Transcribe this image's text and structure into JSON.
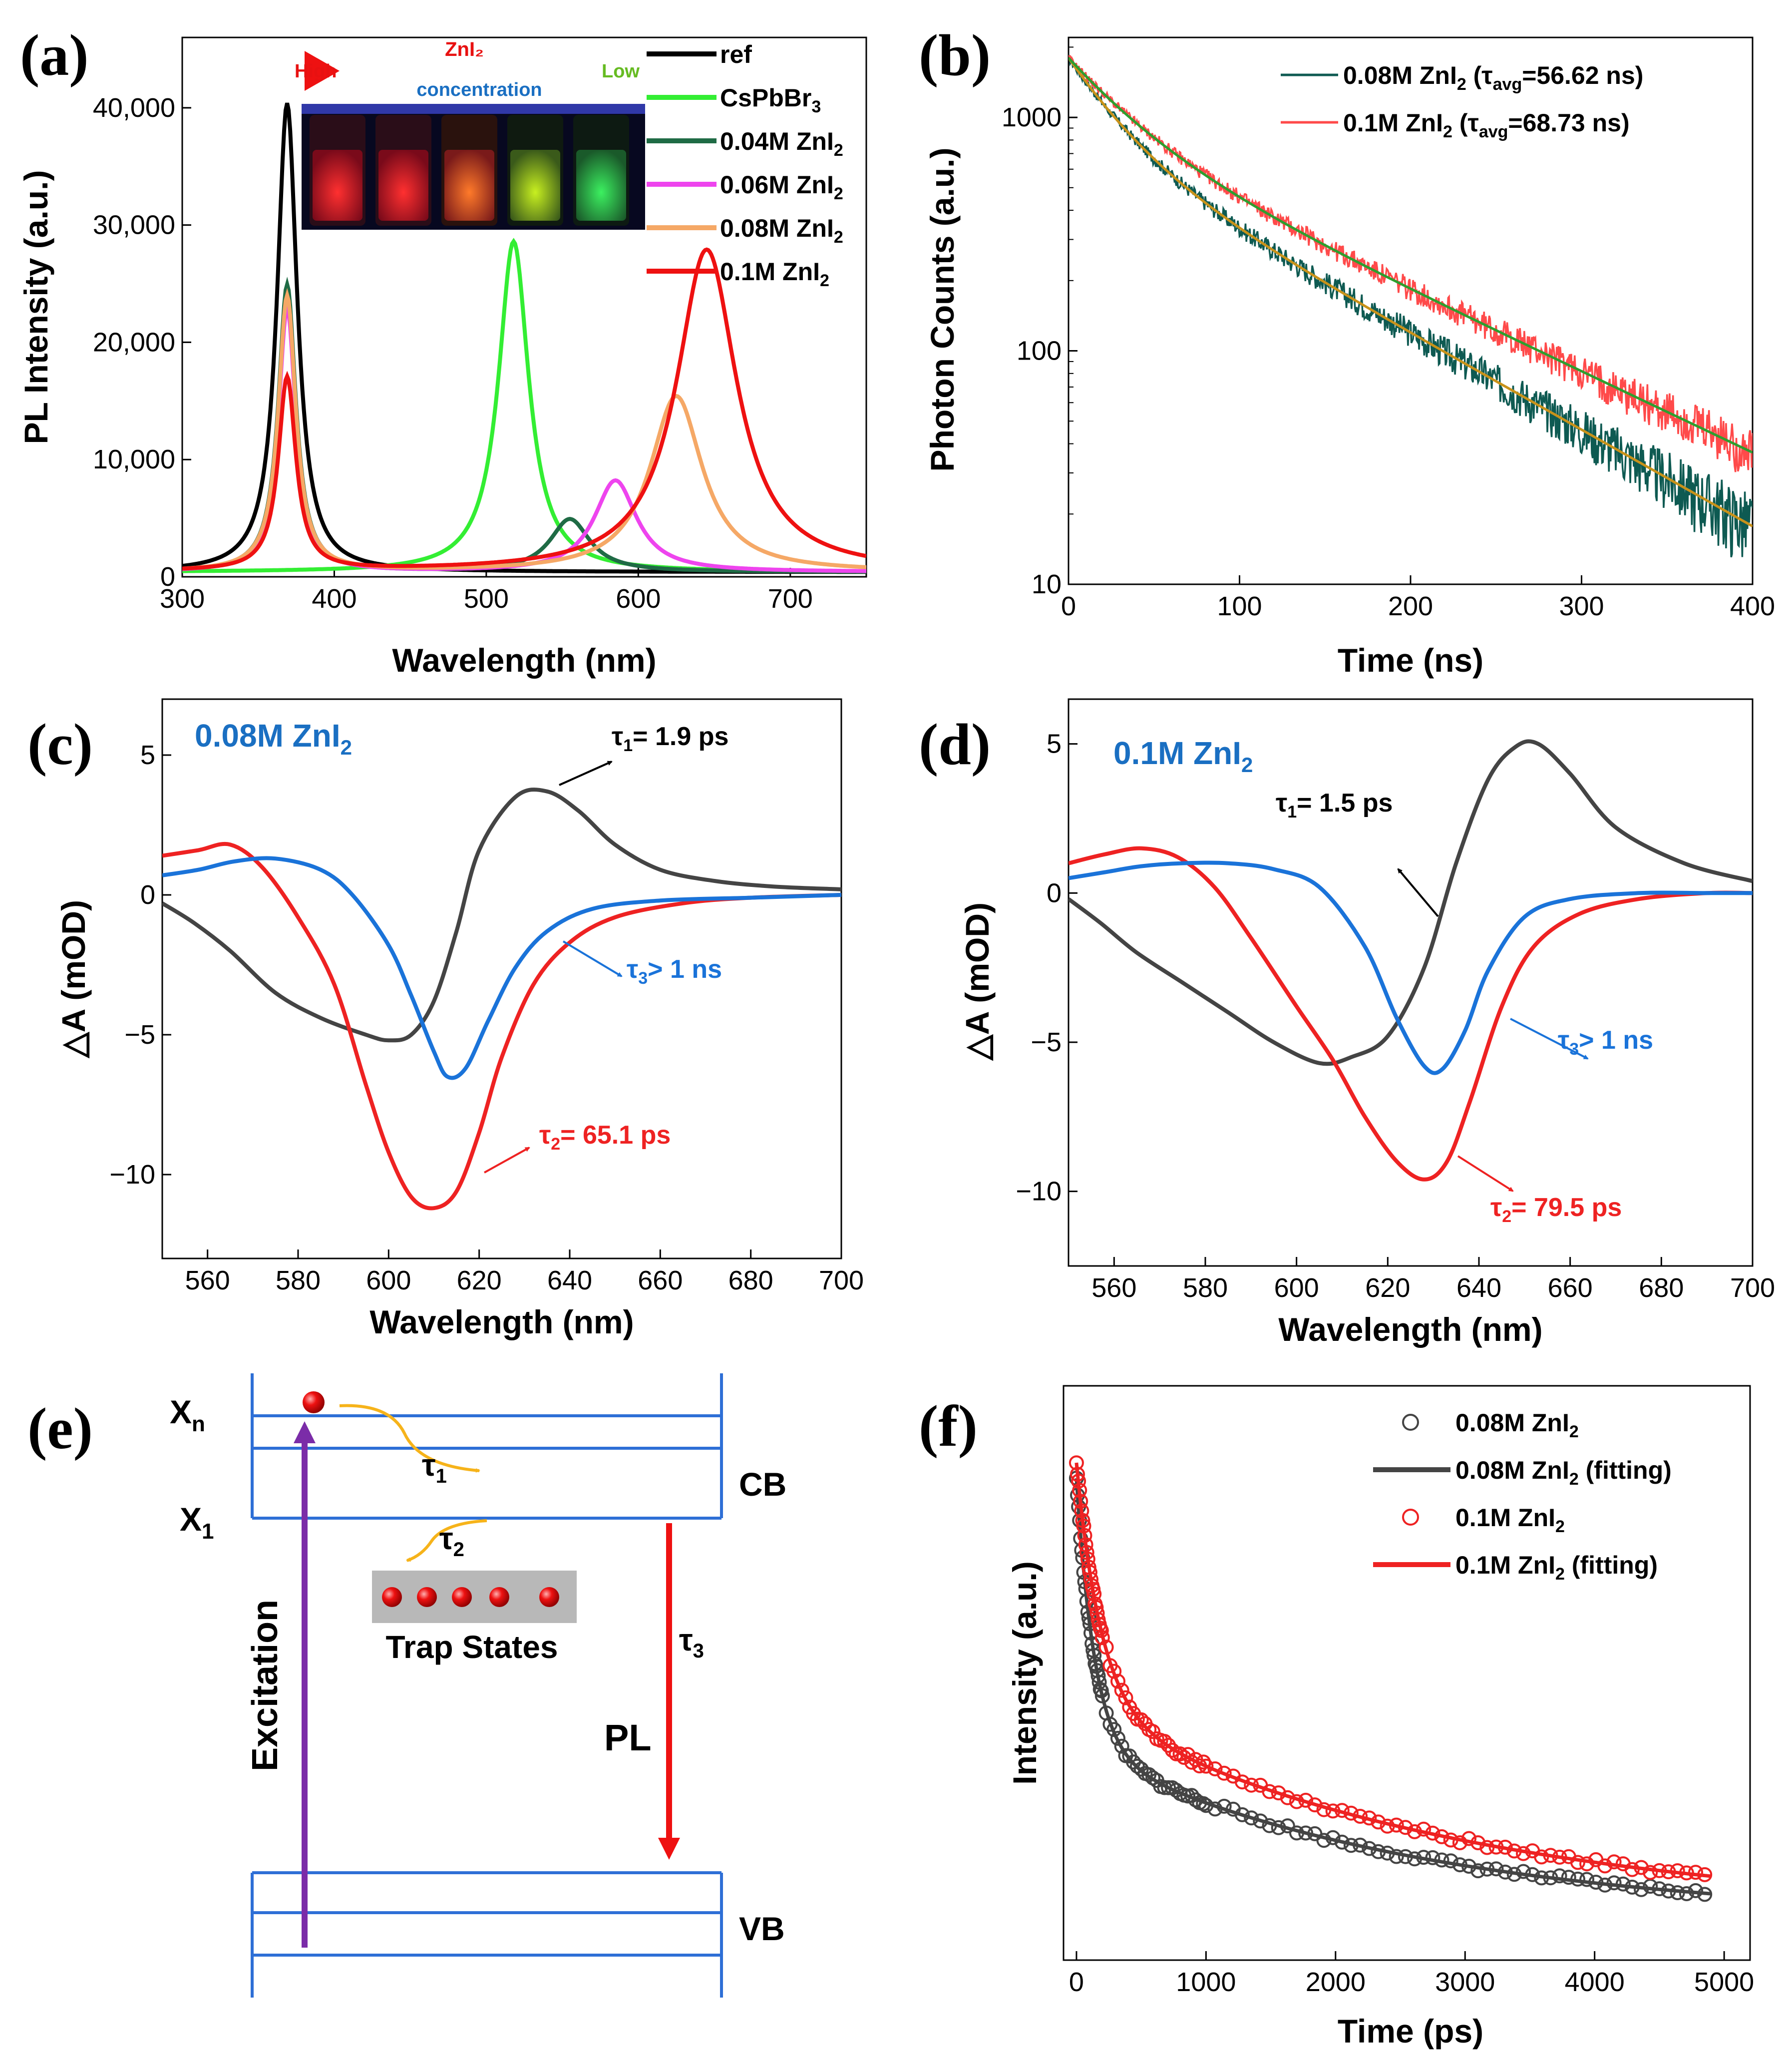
{
  "colors": {
    "ref": "#000000",
    "cspbbr3": "#33ee33",
    "zn004": "#1f6b45",
    "zn006": "#ee44ee",
    "zn008": "#f5a866",
    "zn01": "#ee1111",
    "b008": "#0e5a52",
    "b01": "#ff4a4a",
    "fitGreen": "#2e9e2e",
    "fitGold": "#c8921a",
    "gray": "#444444",
    "blue": "#1a73d9",
    "red": "#ee2222",
    "purple": "#7b2ca8",
    "amber": "#f6b31a",
    "cbblue": "#2e6fd6",
    "textBlue": "#1a6fc2"
  },
  "panels": {
    "a": "(a)",
    "b": "(b)",
    "c": "(c)",
    "d": "(d)",
    "e": "(e)",
    "f": "(f)"
  },
  "inset": {
    "zni2": "ZnI₂",
    "high": "High",
    "low": "Low",
    "concentration": "concentration"
  },
  "chart_data": [
    {
      "id": "a",
      "type": "line",
      "xlabel": "Wavelength (nm)",
      "ylabel": "PL Intensity (a.u.)",
      "xlim": [
        300,
        750
      ],
      "ylim": [
        0,
        46000
      ],
      "xticks": [
        300,
        400,
        500,
        600,
        700
      ],
      "xtick_labels": [
        "300",
        "400",
        "500",
        "600",
        "700"
      ],
      "yticks": [
        0,
        10000,
        20000,
        30000,
        40000
      ],
      "ytick_labels": [
        "0",
        "10,000",
        "20,000",
        "30,000",
        "40,000"
      ],
      "series": [
        {
          "name": "ref",
          "legend": "ref",
          "sub": "",
          "color_key": "ref",
          "peaks": [
            {
              "center": 369,
              "amp": 40000,
              "width": 8
            }
          ]
        },
        {
          "name": "CsPbBr3",
          "legend": "CsPbBr",
          "sub": "3",
          "color_key": "cspbbr3",
          "peaks": [
            {
              "center": 518,
              "amp": 28200,
              "width": 12
            }
          ]
        },
        {
          "name": "0.04M ZnI2",
          "legend": "0.04M ZnI",
          "sub": "2",
          "color_key": "zn004",
          "peaks": [
            {
              "center": 369,
              "amp": 24500,
              "width": 7
            },
            {
              "center": 555,
              "amp": 4500,
              "width": 16
            }
          ]
        },
        {
          "name": "0.06M ZnI2",
          "legend": "0.06M ZnI",
          "sub": "2",
          "color_key": "zn006",
          "peaks": [
            {
              "center": 369,
              "amp": 22500,
              "width": 7
            },
            {
              "center": 585,
              "amp": 7800,
              "width": 17
            }
          ]
        },
        {
          "name": "0.08M ZnI2",
          "legend": "0.08M ZnI",
          "sub": "2",
          "color_key": "zn008",
          "peaks": [
            {
              "center": 369,
              "amp": 23500,
              "width": 7
            },
            {
              "center": 625,
              "amp": 15000,
              "width": 21
            }
          ]
        },
        {
          "name": "0.1M ZnI2",
          "legend": "0.1M  ZnI",
          "sub": "2",
          "color_key": "zn01",
          "peaks": [
            {
              "center": 369,
              "amp": 16500,
              "width": 7
            },
            {
              "center": 645,
              "amp": 27500,
              "width": 24
            }
          ]
        }
      ]
    },
    {
      "id": "b",
      "type": "line",
      "yscale": "log",
      "xlabel": "Time (ns)",
      "ylabel": "Photon Counts (a.u.)",
      "xlim": [
        0,
        400
      ],
      "ylim": [
        10,
        2200
      ],
      "xticks": [
        0,
        100,
        200,
        300,
        400
      ],
      "xtick_labels": [
        "0",
        "100",
        "200",
        "300",
        "400"
      ],
      "yticks": [
        10,
        100,
        1000
      ],
      "ytick_labels": [
        "10",
        "100",
        "1000"
      ],
      "series": [
        {
          "name": "0.08M ZnI2",
          "legend_main": "0.08M ZnI",
          "legend_sub": "2",
          "legend_tau": " (τ",
          "legend_avg": "avg",
          "legend_val": "=56.62 ns)",
          "color_key": "b008",
          "fit": {
            "a1": 1000,
            "t1": 28,
            "a2": 800,
            "t2": 105
          },
          "fit_color_key": "fitGold"
        },
        {
          "name": "0.1M ZnI2",
          "legend_main": "0.1M ZnI",
          "legend_sub": "2",
          "legend_tau": " (τ",
          "legend_avg": "avg",
          "legend_val": "=68.73 ns)",
          "color_key": "b01",
          "fit": {
            "a1": 900,
            "t1": 35,
            "a2": 900,
            "t2": 125
          },
          "fit_color_key": "fitGreen"
        }
      ]
    },
    {
      "id": "c",
      "type": "line",
      "title": "0.08M ZnI",
      "title_sub": "2",
      "xlabel": "Wavelength (nm)",
      "ylabel": "△A (mOD)",
      "xlim": [
        550,
        700
      ],
      "ylim": [
        -13,
        7
      ],
      "xticks": [
        560,
        580,
        600,
        620,
        640,
        660,
        680,
        700
      ],
      "xtick_labels": [
        "560",
        "580",
        "600",
        "620",
        "640",
        "660",
        "680",
        "700"
      ],
      "yticks": [
        -10,
        -5,
        0,
        5
      ],
      "ytick_labels": [
        "−10",
        "−5",
        "0",
        "5"
      ],
      "series": [
        {
          "name": "τ1 component",
          "color_key": "gray",
          "x": [
            550,
            557,
            565,
            575,
            585,
            595,
            600,
            605,
            610,
            615,
            620,
            628,
            635,
            642,
            650,
            660,
            672,
            685,
            700
          ],
          "y": [
            -0.3,
            -1.0,
            -2.0,
            -3.5,
            -4.4,
            -5.0,
            -5.2,
            -5.0,
            -3.8,
            -1.3,
            1.6,
            3.5,
            3.7,
            3.0,
            1.8,
            0.9,
            0.5,
            0.3,
            0.2
          ]
        },
        {
          "name": "τ2 component",
          "color_key": "red",
          "x": [
            550,
            558,
            565,
            572,
            580,
            588,
            595,
            600,
            605,
            610,
            615,
            620,
            625,
            632,
            640,
            650,
            665,
            680,
            700
          ],
          "y": [
            1.4,
            1.6,
            1.8,
            1.0,
            -0.8,
            -3.2,
            -6.8,
            -9.2,
            -10.8,
            -11.2,
            -10.6,
            -8.5,
            -5.8,
            -3.2,
            -1.7,
            -0.8,
            -0.3,
            -0.1,
            0.0
          ]
        },
        {
          "name": "τ3 component",
          "color_key": "blue",
          "x": [
            550,
            558,
            566,
            575,
            585,
            592,
            600,
            605,
            610,
            613,
            617,
            622,
            628,
            635,
            645,
            660,
            680,
            700
          ],
          "y": [
            0.7,
            0.9,
            1.2,
            1.3,
            0.9,
            0.0,
            -1.8,
            -3.6,
            -5.6,
            -6.5,
            -6.2,
            -4.5,
            -2.6,
            -1.3,
            -0.5,
            -0.2,
            -0.1,
            0.0
          ]
        }
      ],
      "annotations": [
        {
          "tau": "τ",
          "sub": "1",
          "text": "= 1.9 ps",
          "color_key": "ref"
        },
        {
          "tau": "τ",
          "sub": "3",
          "text": "> 1 ns",
          "color_key": "blue"
        },
        {
          "tau": "τ",
          "sub": "2",
          "text": "= 65.1 ps",
          "color_key": "red"
        }
      ]
    },
    {
      "id": "d",
      "type": "line",
      "title": "0.1M ZnI",
      "title_sub": "2",
      "xlabel": "Wavelength (nm)",
      "ylabel": "△A (mOD)",
      "xlim": [
        550,
        700
      ],
      "ylim": [
        -12.5,
        6.5
      ],
      "xticks": [
        560,
        580,
        600,
        620,
        640,
        660,
        680,
        700
      ],
      "xtick_labels": [
        "560",
        "580",
        "600",
        "620",
        "640",
        "660",
        "680",
        "700"
      ],
      "yticks": [
        -10,
        -5,
        0,
        5
      ],
      "ytick_labels": [
        "−10",
        "−5",
        "0",
        "5"
      ],
      "series": [
        {
          "name": "τ1 component",
          "color_key": "gray",
          "x": [
            550,
            557,
            565,
            575,
            585,
            595,
            605,
            612,
            620,
            628,
            635,
            642,
            648,
            653,
            660,
            670,
            685,
            700
          ],
          "y": [
            -0.2,
            -1.0,
            -2.0,
            -3.0,
            -4.0,
            -5.0,
            -5.7,
            -5.5,
            -4.8,
            -2.5,
            1.0,
            3.8,
            4.9,
            5.0,
            4.0,
            2.2,
            1.0,
            0.4
          ]
        },
        {
          "name": "τ2 component",
          "color_key": "red",
          "x": [
            550,
            558,
            566,
            574,
            582,
            590,
            600,
            608,
            615,
            622,
            628,
            633,
            638,
            645,
            652,
            662,
            675,
            690,
            700
          ],
          "y": [
            1.0,
            1.3,
            1.5,
            1.2,
            0.2,
            -1.5,
            -3.8,
            -5.6,
            -7.5,
            -9.0,
            -9.6,
            -9.0,
            -7.0,
            -3.8,
            -1.8,
            -0.7,
            -0.2,
            0.0,
            0.0
          ]
        },
        {
          "name": "τ3 component",
          "color_key": "blue",
          "x": [
            550,
            558,
            566,
            575,
            585,
            595,
            605,
            615,
            622,
            628,
            632,
            637,
            642,
            650,
            660,
            675,
            690,
            700
          ],
          "y": [
            0.5,
            0.7,
            0.9,
            1.0,
            1.0,
            0.8,
            0.2,
            -1.8,
            -4.2,
            -5.8,
            -5.9,
            -4.6,
            -2.6,
            -0.8,
            -0.2,
            0.0,
            0.0,
            0.0
          ]
        }
      ],
      "annotations": [
        {
          "tau": "τ",
          "sub": "1",
          "text": "= 1.5 ps",
          "color_key": "ref"
        },
        {
          "tau": "τ",
          "sub": "3",
          "text": "> 1 ns",
          "color_key": "blue"
        },
        {
          "tau": "τ",
          "sub": "2",
          "text": "= 79.5 ps",
          "color_key": "red"
        }
      ]
    },
    {
      "id": "f",
      "type": "scatter",
      "xlabel": "Time (ps)",
      "ylabel": "Intensity (a.u.)",
      "xlim": [
        -100,
        5200
      ],
      "ylim": [
        0,
        1.0
      ],
      "xticks": [
        0,
        1000,
        2000,
        3000,
        4000,
        5000
      ],
      "xtick_labels": [
        "0",
        "1000",
        "2000",
        "3000",
        "4000",
        "5000"
      ],
      "series": [
        {
          "name": "0.08M ZnI2",
          "legend": "0.08M ZnI",
          "sub": "2",
          "suffix": "",
          "kind": "scatter",
          "color_key": "gray",
          "model": {
            "a1": 0.52,
            "t1": 140,
            "a2": 0.33,
            "t2": 2600,
            "c": 0.02
          }
        },
        {
          "name": "0.08M ZnI2 (fitting)",
          "legend": "0.08M ZnI",
          "sub": "2",
          "suffix": " (fitting)",
          "kind": "line",
          "color_key": "gray",
          "model": {
            "a1": 0.52,
            "t1": 140,
            "a2": 0.33,
            "t2": 2600,
            "c": 0.02
          }
        },
        {
          "name": "0.1M ZnI2",
          "legend": "0.1M ZnI",
          "sub": "2",
          "suffix": "",
          "kind": "scatter",
          "color_key": "red",
          "model": {
            "a1": 0.47,
            "t1": 190,
            "a2": 0.4,
            "t2": 2900,
            "c": 0.03
          }
        },
        {
          "name": "0.1M ZnI2 (fitting)",
          "legend": "0.1M ZnI",
          "sub": "2",
          "suffix": " (fitting)",
          "kind": "line",
          "color_key": "red",
          "model": {
            "a1": 0.47,
            "t1": 190,
            "a2": 0.4,
            "t2": 2900,
            "c": 0.03
          }
        }
      ]
    }
  ],
  "diagram": {
    "xn": "X",
    "xn_sub": "n",
    "x1": "X",
    "x1_sub": "1",
    "cb": "CB",
    "vb": "VB",
    "tau1": "τ",
    "tau1_sub": "1",
    "tau2": "τ",
    "tau2_sub": "2",
    "tau3": "τ",
    "tau3_sub": "3",
    "trap": "Trap States",
    "excitation": "Excitation",
    "pl": "PL"
  }
}
